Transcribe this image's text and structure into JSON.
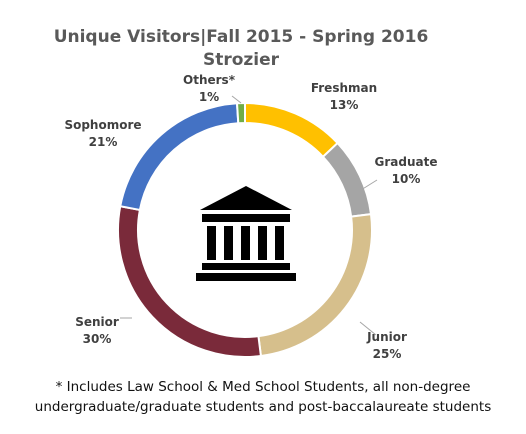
{
  "colors": {
    "freshman": "#FFC000",
    "graduate": "#A5A5A5",
    "junior": "#D6BF8C",
    "senior": "#7A2A3A",
    "sophomore": "#4472C4",
    "others": "#70AD47",
    "label_text": "#404040",
    "leader_line": "#A6A6A6"
  },
  "center_icon": "building-columns-icon",
  "chart_data": {
    "type": "pie",
    "variant": "donut",
    "title": "Unique Visitors|Fall 2015 - Spring 2016",
    "subtitle": "Strozier",
    "unit": "%",
    "categories": [
      "Freshman",
      "Graduate",
      "Junior",
      "Senior",
      "Sophomore",
      "Others*"
    ],
    "values": [
      13,
      10,
      25,
      30,
      21,
      1
    ],
    "value_labels": [
      "13%",
      "10%",
      "25%",
      "30%",
      "21%",
      "1%"
    ],
    "legend": "none (data labels outside slices)"
  },
  "footnote": {
    "line1": "* Includes Law School & Med School Students, all non-degree",
    "line2": "undergraduate/graduate students and post-baccalaureate students"
  }
}
